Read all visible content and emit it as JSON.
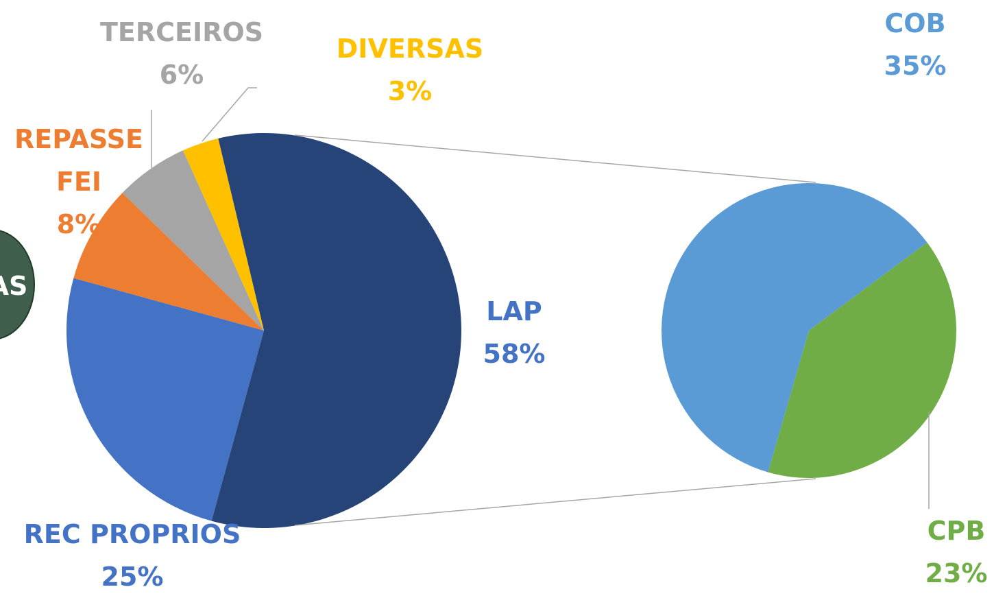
{
  "badge": {
    "label": "AS"
  },
  "chart_data": [
    {
      "type": "pie",
      "categories": [
        "LAP",
        "REC PROPRIOS",
        "REPASSE FEI",
        "TERCEIROS",
        "DIVERSAS"
      ],
      "values": [
        58,
        25,
        8,
        6,
        3
      ],
      "value_labels": [
        "58%",
        "25%",
        "8%",
        "6%",
        "3%"
      ],
      "colors": [
        "#264478",
        "#4472c4",
        "#ed7d31",
        "#a5a5a5",
        "#ffc000"
      ],
      "label_colors": [
        "#4472c4",
        "#4472c4",
        "#ed7d31",
        "#a5a5a5",
        "#ffc000"
      ]
    },
    {
      "type": "pie",
      "categories": [
        "COB",
        "CPB"
      ],
      "values": [
        35,
        23
      ],
      "value_labels": [
        "35%",
        "23%"
      ],
      "colors": [
        "#5b9bd5",
        "#70ad47"
      ],
      "label_colors": [
        "#5b9bd5",
        "#70ad47"
      ]
    }
  ]
}
